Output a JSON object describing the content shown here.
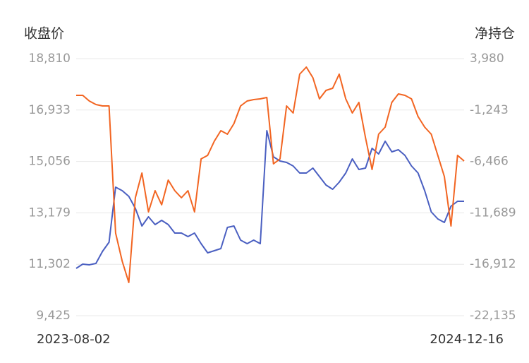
{
  "chart_data": {
    "type": "line",
    "y_label": "收盘价",
    "y2_label": "净持仓",
    "categories": [
      "2023-08-02",
      null,
      null,
      null,
      null,
      null,
      null,
      null,
      null,
      null,
      null,
      null,
      null,
      null,
      null,
      null,
      null,
      null,
      null,
      null,
      null,
      null,
      null,
      null,
      null,
      null,
      null,
      null,
      null,
      null,
      null,
      null,
      null,
      null,
      null,
      null,
      null,
      null,
      null,
      null,
      null,
      null,
      null,
      null,
      null,
      null,
      null,
      null,
      null,
      null,
      null,
      null,
      null,
      null,
      null,
      null,
      null,
      null,
      null,
      "2024-12-16"
    ],
    "ylim": [
      9425,
      18810
    ],
    "yticks": [
      {
        "value": 9425,
        "label": "9,425"
      },
      {
        "value": 11302,
        "label": "11,302"
      },
      {
        "value": 13179,
        "label": "13,179"
      },
      {
        "value": 15056,
        "label": "15,056"
      },
      {
        "value": 16933,
        "label": "16,933"
      },
      {
        "value": 18810,
        "label": "18,810"
      }
    ],
    "y2lim": [
      -22135,
      3980
    ],
    "y2ticks": [
      {
        "value": -22135,
        "label": "-22,135"
      },
      {
        "value": -16912,
        "label": "-16,912"
      },
      {
        "value": -11689,
        "label": "-11,689"
      },
      {
        "value": -6466,
        "label": "-6,466"
      },
      {
        "value": -1243,
        "label": "-1,243"
      },
      {
        "value": 3980,
        "label": "3,980"
      }
    ],
    "grid": true,
    "series": [
      {
        "name": "收盘价",
        "color": "#4a5fc1",
        "values": [
          11152,
          11307,
          11281,
          11333,
          11771,
          12106,
          14117,
          13989,
          13782,
          13344,
          12699,
          13035,
          12751,
          12906,
          12751,
          12442,
          12442,
          12313,
          12442,
          12055,
          11720,
          11797,
          11874,
          12648,
          12699,
          12184,
          12055,
          12184,
          12055,
          16180,
          15226,
          15071,
          15020,
          14891,
          14633,
          14633,
          14814,
          14504,
          14195,
          14040,
          14298,
          14633,
          15149,
          14762,
          14814,
          15536,
          15329,
          15793,
          15407,
          15484,
          15278,
          14891,
          14633,
          13989,
          13215,
          12957,
          12828,
          13421,
          13602,
          13602
        ]
      },
      {
        "name": "净持仓",
        "color": "#f26522",
        "axis": "y2",
        "values": [
          249,
          249,
          -325,
          -683,
          -827,
          -827,
          -13741,
          -16611,
          -18763,
          -10154,
          -7643,
          -11589,
          -9436,
          -10871,
          -8360,
          -9436,
          -10154,
          -9436,
          -11589,
          -6208,
          -5849,
          -4414,
          -3338,
          -3697,
          -2621,
          -827,
          -325,
          -181,
          -109,
          34,
          -6710,
          -6208,
          -827,
          -1544,
          2402,
          3119,
          2043,
          -109,
          751,
          967,
          2402,
          -109,
          -1544,
          -468,
          -4055,
          -7284,
          -3697,
          -2979,
          -468,
          393,
          249,
          -109,
          -1903,
          -2979,
          -3697,
          -5849,
          -8001,
          -13024,
          -5849,
          -6423
        ]
      }
    ]
  }
}
